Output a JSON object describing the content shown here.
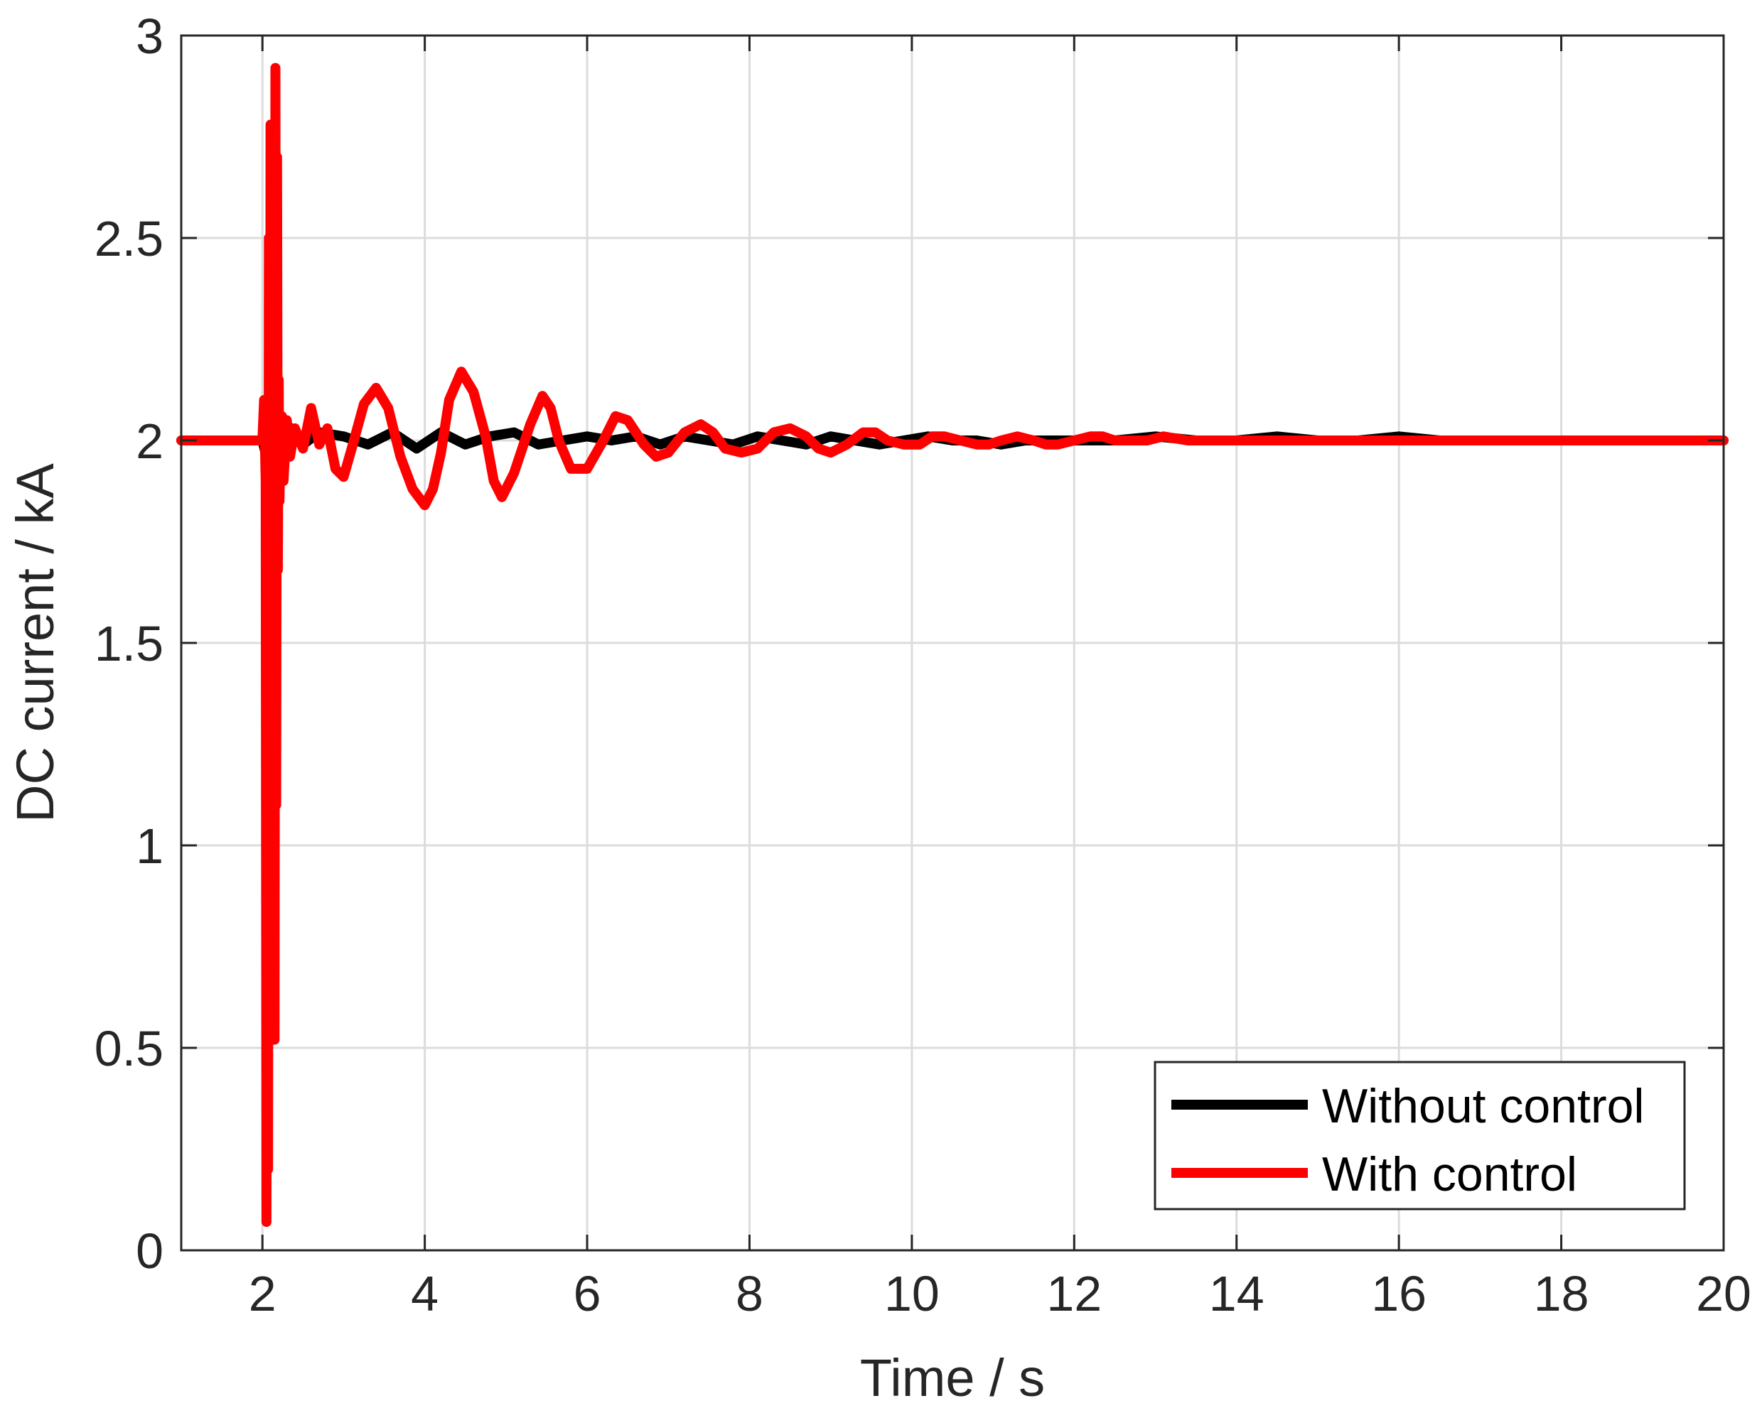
{
  "chart_data": {
    "type": "line",
    "title": "",
    "xlabel": "Time / s",
    "ylabel": "DC current / kA",
    "xlim": [
      1,
      20
    ],
    "ylim": [
      0,
      3
    ],
    "xticks": [
      2,
      4,
      6,
      8,
      10,
      12,
      14,
      16,
      18,
      20
    ],
    "xtick_labels": [
      "2",
      "4",
      "6",
      "8",
      "10",
      "12",
      "14",
      "16",
      "18",
      "20"
    ],
    "yticks": [
      0,
      0.5,
      1,
      1.5,
      2,
      2.5,
      3
    ],
    "ytick_labels": [
      "0",
      "0.5",
      "1",
      "1.5",
      "2",
      "2.5",
      "3"
    ],
    "grid": true,
    "legend_position": "bottom-right",
    "series": [
      {
        "name": "Without control",
        "color": "#000000",
        "x": [
          1,
          2,
          2.05,
          2.1,
          2.2,
          2.3,
          2.5,
          2.7,
          3.0,
          3.3,
          3.6,
          3.9,
          4.2,
          4.5,
          4.8,
          5.1,
          5.4,
          5.7,
          6.0,
          6.3,
          6.6,
          6.9,
          7.2,
          7.5,
          7.8,
          8.1,
          8.4,
          8.7,
          9.0,
          9.3,
          9.6,
          9.9,
          10.2,
          10.5,
          10.8,
          11.1,
          11.4,
          11.7,
          12.0,
          12.5,
          13.0,
          13.5,
          14.0,
          14.5,
          15.0,
          15.5,
          16.0,
          16.5,
          17.0,
          17.5,
          18.0,
          18.5,
          19.0,
          19.5,
          20
        ],
        "y": [
          2.0,
          2.0,
          1.96,
          2.06,
          1.98,
          2.04,
          1.99,
          2.02,
          2.01,
          1.99,
          2.02,
          1.98,
          2.02,
          1.99,
          2.01,
          2.02,
          1.99,
          2.0,
          2.01,
          2.0,
          2.01,
          1.99,
          2.01,
          2.0,
          1.99,
          2.01,
          2.0,
          1.99,
          2.01,
          2.0,
          1.99,
          2.0,
          2.01,
          2.0,
          2.0,
          1.99,
          2.0,
          2.0,
          2.0,
          2.0,
          2.01,
          2.0,
          2.0,
          2.01,
          2.0,
          2.0,
          2.01,
          2.0,
          2.0,
          2.0,
          2.0,
          2.0,
          2.0,
          2.0,
          2.0
        ]
      },
      {
        "name": "With control",
        "color": "#ff0000",
        "x": [
          1,
          2.0,
          2.02,
          2.04,
          2.05,
          2.06,
          2.07,
          2.08,
          2.09,
          2.1,
          2.11,
          2.12,
          2.13,
          2.14,
          2.15,
          2.16,
          2.17,
          2.18,
          2.19,
          2.2,
          2.21,
          2.22,
          2.24,
          2.26,
          2.3,
          2.34,
          2.4,
          2.5,
          2.6,
          2.7,
          2.8,
          2.9,
          3.0,
          3.1,
          3.25,
          3.4,
          3.55,
          3.7,
          3.85,
          4.0,
          4.1,
          4.2,
          4.3,
          4.45,
          4.6,
          4.75,
          4.85,
          4.95,
          5.1,
          5.3,
          5.45,
          5.55,
          5.65,
          5.8,
          6.0,
          6.2,
          6.35,
          6.5,
          6.7,
          6.85,
          7.0,
          7.2,
          7.4,
          7.55,
          7.7,
          7.9,
          8.1,
          8.3,
          8.5,
          8.7,
          8.85,
          9.0,
          9.2,
          9.4,
          9.55,
          9.7,
          9.9,
          10.1,
          10.25,
          10.4,
          10.6,
          10.8,
          10.95,
          11.1,
          11.3,
          11.5,
          11.65,
          11.8,
          12.0,
          12.2,
          12.35,
          12.5,
          12.7,
          12.9,
          13.1,
          13.4,
          13.7,
          14.0,
          14.3,
          14.6,
          14.9,
          15.2,
          15.5,
          15.8,
          16.1,
          16.5,
          17.0,
          17.5,
          18.0,
          18.5,
          19.0,
          19.5,
          20
        ],
        "y": [
          2.0,
          2.0,
          2.1,
          1.9,
          0.07,
          2.1,
          0.2,
          2.5,
          0.55,
          2.78,
          0.7,
          2.6,
          1.0,
          2.4,
          0.52,
          2.92,
          1.1,
          2.7,
          1.68,
          2.15,
          1.85,
          1.95,
          2.06,
          1.9,
          2.05,
          1.96,
          2.03,
          1.98,
          2.08,
          1.99,
          2.03,
          1.93,
          1.91,
          1.98,
          2.09,
          2.13,
          2.08,
          1.96,
          1.88,
          1.84,
          1.88,
          1.97,
          2.1,
          2.17,
          2.12,
          2.01,
          1.9,
          1.86,
          1.92,
          2.04,
          2.11,
          2.08,
          2.0,
          1.93,
          1.93,
          2.0,
          2.06,
          2.05,
          1.99,
          1.96,
          1.97,
          2.02,
          2.04,
          2.02,
          1.98,
          1.97,
          1.98,
          2.02,
          2.03,
          2.01,
          1.98,
          1.97,
          1.99,
          2.02,
          2.02,
          2.0,
          1.99,
          1.99,
          2.01,
          2.01,
          2.0,
          1.99,
          1.99,
          2.0,
          2.01,
          2.0,
          1.99,
          1.99,
          2.0,
          2.01,
          2.01,
          2.0,
          2.0,
          2.0,
          2.01,
          2.0,
          2.0,
          2.0,
          2.0,
          2.0,
          2.0,
          2.0,
          2.0,
          2.0,
          2.0,
          2.0,
          2.0,
          2.0,
          2.0,
          2.0,
          2.0,
          2.0,
          2.0
        ]
      }
    ]
  }
}
